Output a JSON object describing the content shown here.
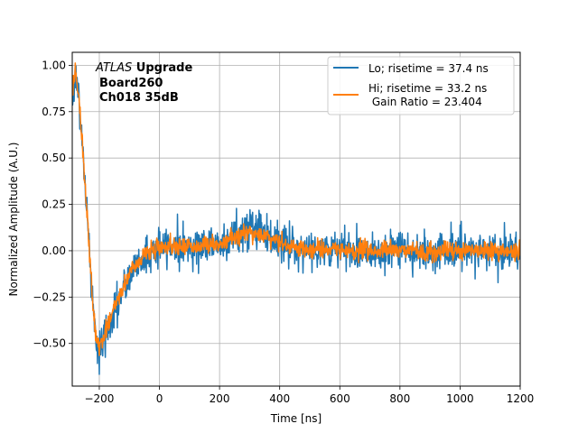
{
  "chart_data": {
    "type": "line",
    "xlabel": "Time [ns]",
    "ylabel": "Normalized Amplitude (A.U.)",
    "xlim": [
      -290,
      1200
    ],
    "ylim": [
      -0.73,
      1.07
    ],
    "xticks": [
      -200,
      0,
      200,
      400,
      600,
      800,
      1000,
      1200
    ],
    "xtick_labels": [
      "−200",
      "0",
      "200",
      "400",
      "600",
      "800",
      "1000",
      "1200"
    ],
    "yticks": [
      -0.5,
      -0.25,
      0.0,
      0.25,
      0.5,
      0.75,
      1.0
    ],
    "ytick_labels": [
      "−0.50",
      "−0.25",
      "0.00",
      "0.25",
      "0.50",
      "0.75",
      "1.00"
    ],
    "grid": true,
    "legend_position": "top-right",
    "annotation": {
      "line1_italic": "ATLAS",
      "line1_bold": " Upgrade",
      "line2": "Board260",
      "line3": "Ch018 35dB"
    },
    "series": [
      {
        "name": "Lo; risetime = 37.4 ns",
        "color": "#1f77b4",
        "noise": 0.07,
        "shape": {
          "x": [
            -290,
            -280,
            -270,
            -260,
            -250,
            -240,
            -230,
            -220,
            -210,
            -200,
            -190,
            -170,
            -150,
            -120,
            -100,
            -80,
            -50,
            -20,
            0,
            50,
            100,
            150,
            200,
            250,
            300,
            320,
            350,
            400,
            450,
            500,
            600,
            700,
            800,
            900,
            1000,
            1100,
            1200
          ],
          "y": [
            0.82,
            0.96,
            0.85,
            0.65,
            0.42,
            0.18,
            -0.08,
            -0.32,
            -0.5,
            -0.54,
            -0.5,
            -0.42,
            -0.33,
            -0.22,
            -0.14,
            -0.08,
            -0.03,
            0.0,
            0.02,
            0.03,
            0.02,
            0.03,
            0.04,
            0.08,
            0.13,
            0.13,
            0.1,
            0.04,
            0.02,
            0.01,
            0.0,
            0.0,
            0.0,
            0.0,
            0.0,
            0.0,
            0.0
          ]
        }
      },
      {
        "name": "Hi; risetime = 33.2 ns\n Gain Ratio = 23.404",
        "color": "#ff7f0e",
        "noise": 0.032,
        "shape": {
          "x": [
            -290,
            -280,
            -270,
            -260,
            -250,
            -240,
            -230,
            -220,
            -210,
            -200,
            -190,
            -170,
            -150,
            -120,
            -100,
            -80,
            -50,
            -20,
            0,
            50,
            100,
            150,
            200,
            250,
            300,
            320,
            350,
            400,
            450,
            500,
            600,
            700,
            800,
            900,
            1000,
            1100,
            1200
          ],
          "y": [
            0.86,
            0.97,
            0.86,
            0.66,
            0.42,
            0.18,
            -0.08,
            -0.32,
            -0.48,
            -0.52,
            -0.48,
            -0.4,
            -0.31,
            -0.2,
            -0.12,
            -0.07,
            -0.02,
            0.01,
            0.02,
            0.03,
            0.02,
            0.03,
            0.04,
            0.07,
            0.1,
            0.1,
            0.08,
            0.04,
            0.02,
            0.01,
            0.0,
            0.0,
            0.0,
            0.0,
            0.0,
            0.0,
            0.0
          ]
        }
      }
    ]
  }
}
